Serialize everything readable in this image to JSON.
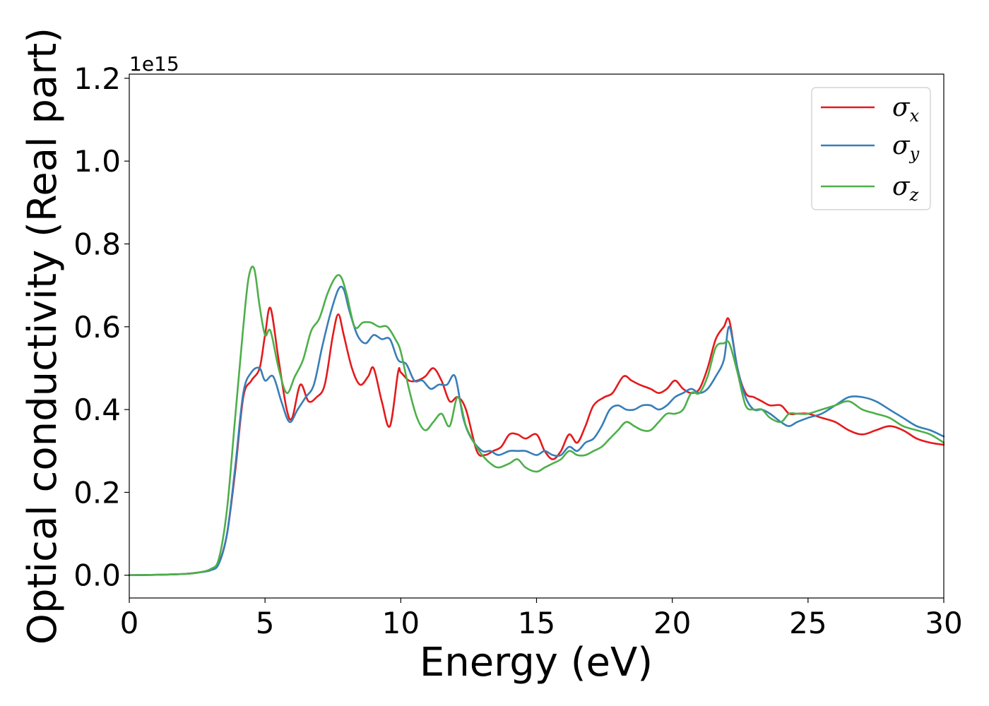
{
  "chart_data": {
    "type": "line",
    "xlabel": "Energy (eV)",
    "ylabel": "Optical conductivity (Real part)",
    "y_offset_text": "1e15",
    "xlim": [
      0,
      30
    ],
    "ylim": [
      -0.055,
      1.21
    ],
    "xticks": [
      0,
      5,
      10,
      15,
      20,
      25,
      30
    ],
    "xtick_labels": [
      "0",
      "5",
      "10",
      "15",
      "20",
      "25",
      "30"
    ],
    "yticks": [
      0.0,
      0.2,
      0.4,
      0.6,
      0.8,
      1.0,
      1.2
    ],
    "ytick_labels": [
      "0.0",
      "0.2",
      "0.4",
      "0.6",
      "0.8",
      "1.0",
      "1.2"
    ],
    "grid": false,
    "legend_position": "top-right",
    "series": [
      {
        "name": "σx",
        "symbol": "σ",
        "subscript": "x",
        "color": "#e41a1c",
        "x": [
          0,
          1,
          2,
          2.5,
          3,
          3.3,
          3.6,
          3.9,
          4.2,
          4.5,
          4.8,
          5.0,
          5.2,
          5.5,
          5.8,
          6.0,
          6.3,
          6.6,
          6.9,
          7.2,
          7.5,
          7.7,
          7.9,
          8.2,
          8.5,
          8.8,
          9.0,
          9.3,
          9.6,
          9.9,
          10.0,
          10.3,
          10.6,
          10.9,
          11.2,
          11.5,
          11.8,
          12.1,
          12.4,
          12.8,
          13.1,
          13.4,
          13.7,
          14.0,
          14.3,
          14.6,
          15.0,
          15.3,
          15.6,
          15.9,
          16.2,
          16.5,
          16.8,
          17.1,
          17.5,
          17.8,
          18.2,
          18.5,
          18.8,
          19.2,
          19.5,
          19.8,
          20.1,
          20.4,
          20.7,
          21.0,
          21.3,
          21.6,
          21.9,
          22.1,
          22.4,
          22.7,
          23.0,
          23.3,
          23.6,
          24.0,
          24.3,
          24.6,
          25.0,
          25.5,
          26.0,
          26.5,
          27.0,
          27.5,
          28.0,
          28.5,
          29.0,
          29.5,
          30.0
        ],
        "y": [
          0.0,
          0.001,
          0.003,
          0.006,
          0.013,
          0.03,
          0.1,
          0.25,
          0.43,
          0.47,
          0.5,
          0.58,
          0.645,
          0.52,
          0.4,
          0.38,
          0.46,
          0.42,
          0.43,
          0.46,
          0.58,
          0.63,
          0.58,
          0.5,
          0.46,
          0.48,
          0.5,
          0.42,
          0.36,
          0.49,
          0.49,
          0.47,
          0.47,
          0.48,
          0.5,
          0.47,
          0.42,
          0.43,
          0.4,
          0.3,
          0.29,
          0.3,
          0.31,
          0.34,
          0.34,
          0.33,
          0.34,
          0.3,
          0.28,
          0.3,
          0.34,
          0.32,
          0.36,
          0.41,
          0.43,
          0.44,
          0.48,
          0.47,
          0.46,
          0.45,
          0.44,
          0.45,
          0.47,
          0.45,
          0.44,
          0.45,
          0.5,
          0.57,
          0.6,
          0.615,
          0.5,
          0.44,
          0.43,
          0.42,
          0.41,
          0.41,
          0.39,
          0.39,
          0.39,
          0.38,
          0.37,
          0.35,
          0.34,
          0.35,
          0.36,
          0.35,
          0.33,
          0.32,
          0.315
        ]
      },
      {
        "name": "σy",
        "symbol": "σ",
        "subscript": "y",
        "color": "#377eb8",
        "x": [
          0,
          1,
          2,
          2.5,
          3,
          3.3,
          3.6,
          3.9,
          4.2,
          4.5,
          4.8,
          5.0,
          5.3,
          5.6,
          5.9,
          6.2,
          6.5,
          6.8,
          7.1,
          7.4,
          7.7,
          7.9,
          8.1,
          8.4,
          8.7,
          9.0,
          9.3,
          9.6,
          9.9,
          10.2,
          10.5,
          10.8,
          11.1,
          11.4,
          11.7,
          12.0,
          12.3,
          12.6,
          13.0,
          13.3,
          13.6,
          14.0,
          14.3,
          14.6,
          15.0,
          15.3,
          15.6,
          15.9,
          16.2,
          16.5,
          16.8,
          17.1,
          17.4,
          17.7,
          18.0,
          18.3,
          18.6,
          18.9,
          19.2,
          19.5,
          19.8,
          20.1,
          20.4,
          20.7,
          21.0,
          21.3,
          21.6,
          21.9,
          22.1,
          22.4,
          22.7,
          23.0,
          23.3,
          23.6,
          24.0,
          24.3,
          24.6,
          25.0,
          25.5,
          26.0,
          26.5,
          27.0,
          27.5,
          28.0,
          28.5,
          29.0,
          29.5,
          30.0
        ],
        "y": [
          0.0,
          0.001,
          0.003,
          0.006,
          0.012,
          0.028,
          0.1,
          0.26,
          0.44,
          0.49,
          0.5,
          0.47,
          0.48,
          0.42,
          0.37,
          0.4,
          0.43,
          0.46,
          0.55,
          0.63,
          0.69,
          0.69,
          0.64,
          0.58,
          0.56,
          0.58,
          0.57,
          0.57,
          0.52,
          0.51,
          0.47,
          0.47,
          0.45,
          0.46,
          0.46,
          0.48,
          0.38,
          0.33,
          0.3,
          0.3,
          0.29,
          0.3,
          0.3,
          0.3,
          0.29,
          0.3,
          0.29,
          0.29,
          0.31,
          0.3,
          0.32,
          0.33,
          0.36,
          0.4,
          0.41,
          0.4,
          0.4,
          0.41,
          0.41,
          0.4,
          0.41,
          0.43,
          0.44,
          0.45,
          0.44,
          0.45,
          0.48,
          0.52,
          0.6,
          0.5,
          0.43,
          0.4,
          0.4,
          0.39,
          0.37,
          0.36,
          0.37,
          0.38,
          0.39,
          0.41,
          0.43,
          0.43,
          0.42,
          0.4,
          0.38,
          0.36,
          0.35,
          0.335
        ]
      },
      {
        "name": "σz",
        "symbol": "σ",
        "subscript": "z",
        "color": "#4daf4a",
        "x": [
          0,
          1,
          2,
          2.5,
          3,
          3.3,
          3.6,
          3.9,
          4.2,
          4.4,
          4.6,
          4.8,
          5.0,
          5.2,
          5.5,
          5.8,
          6.1,
          6.4,
          6.7,
          7.0,
          7.3,
          7.6,
          7.8,
          8.0,
          8.3,
          8.6,
          8.9,
          9.2,
          9.5,
          9.8,
          10.0,
          10.3,
          10.6,
          10.9,
          11.2,
          11.5,
          11.8,
          12.1,
          12.4,
          12.7,
          13.0,
          13.3,
          13.6,
          14.0,
          14.3,
          14.6,
          15.0,
          15.3,
          15.6,
          15.9,
          16.2,
          16.5,
          16.8,
          17.1,
          17.4,
          17.7,
          18.0,
          18.3,
          18.6,
          18.9,
          19.2,
          19.5,
          19.8,
          20.1,
          20.4,
          20.7,
          21.0,
          21.3,
          21.6,
          21.9,
          22.1,
          22.4,
          22.7,
          23.0,
          23.3,
          23.6,
          24.0,
          24.3,
          24.6,
          25.0,
          25.5,
          26.0,
          26.5,
          27.0,
          27.5,
          28.0,
          28.5,
          29.0,
          29.5,
          30.0
        ],
        "y": [
          0.0,
          0.001,
          0.003,
          0.006,
          0.015,
          0.04,
          0.16,
          0.38,
          0.6,
          0.72,
          0.74,
          0.65,
          0.58,
          0.59,
          0.5,
          0.44,
          0.48,
          0.52,
          0.59,
          0.62,
          0.68,
          0.72,
          0.72,
          0.68,
          0.6,
          0.61,
          0.61,
          0.6,
          0.6,
          0.57,
          0.54,
          0.45,
          0.38,
          0.35,
          0.37,
          0.39,
          0.36,
          0.43,
          0.36,
          0.32,
          0.29,
          0.27,
          0.26,
          0.27,
          0.28,
          0.26,
          0.25,
          0.26,
          0.27,
          0.28,
          0.3,
          0.29,
          0.29,
          0.3,
          0.31,
          0.33,
          0.35,
          0.37,
          0.36,
          0.35,
          0.35,
          0.37,
          0.39,
          0.39,
          0.4,
          0.44,
          0.44,
          0.48,
          0.55,
          0.56,
          0.56,
          0.49,
          0.41,
          0.4,
          0.4,
          0.38,
          0.37,
          0.39,
          0.39,
          0.39,
          0.4,
          0.41,
          0.42,
          0.4,
          0.39,
          0.38,
          0.36,
          0.35,
          0.34,
          0.32
        ]
      }
    ]
  }
}
